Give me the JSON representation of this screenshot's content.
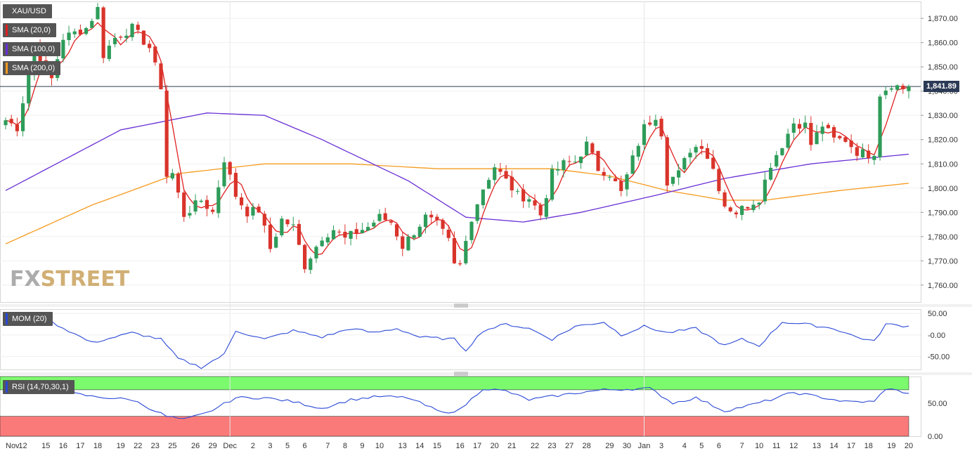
{
  "symbol": "XAU/USD",
  "indicators": [
    {
      "label": "SMA (20,0)",
      "color": "#e02020"
    },
    {
      "label": "SMA (100,0)",
      "color": "#6a2fd6"
    },
    {
      "label": "SMA (200,0)",
      "color": "#f59b1f"
    }
  ],
  "current_price_label": "1,841.89",
  "logo": {
    "part1": "FX",
    "part2": "STREET"
  },
  "panels": {
    "mom_label": "MOM (20)",
    "rsi_label": "RSI (14,70,30,1)"
  },
  "colors": {
    "up": "#2e9c5a",
    "down": "#d9342b",
    "sma20": "#e02020",
    "sma100": "#6a2fd6",
    "sma200": "#f59b1f",
    "indicator_line": "#2a49d6",
    "rsi_overbought": "#7cfa6e",
    "rsi_oversold": "#fa7a7a"
  },
  "chart_data": {
    "type": "candlestick",
    "title": "XAU/USD",
    "price_axis": {
      "ticks": [
        "1,870.00",
        "1,860.00",
        "1,850.00",
        "1,840.00",
        "1,830.00",
        "1,820.00",
        "1,810.00",
        "1,800.00",
        "1,790.00",
        "1,780.00",
        "1,770.00",
        "1,760.00"
      ],
      "range": [
        1753,
        1877
      ]
    },
    "current_price": 1841.89,
    "date_labels": [
      "Nov",
      "12",
      "15",
      "16",
      "17",
      "18",
      "19",
      "22",
      "23",
      "25",
      "26",
      "29",
      "Dec",
      "2",
      "3",
      "5",
      "6",
      "7",
      "8",
      "9",
      "10",
      "13",
      "14",
      "15",
      "16",
      "17",
      "20",
      "21",
      "22",
      "23",
      "27",
      "28",
      "29",
      "30",
      "Jan",
      "3",
      "4",
      "5",
      "6",
      "7",
      "10",
      "11",
      "12",
      "13",
      "14",
      "17",
      "18",
      "19",
      "20"
    ],
    "price_keypoints": [
      [
        0,
        1828
      ],
      [
        2,
        1825
      ],
      [
        5,
        1858
      ],
      [
        8,
        1845
      ],
      [
        10,
        1862
      ],
      [
        14,
        1866
      ],
      [
        16,
        1874
      ],
      [
        17,
        1855
      ],
      [
        19,
        1862
      ],
      [
        22,
        1866
      ],
      [
        25,
        1858
      ],
      [
        27,
        1842
      ],
      [
        28,
        1805
      ],
      [
        29,
        1806
      ],
      [
        31,
        1789
      ],
      [
        34,
        1795
      ],
      [
        36,
        1790
      ],
      [
        38,
        1812
      ],
      [
        40,
        1797
      ],
      [
        42,
        1790
      ],
      [
        44,
        1791
      ],
      [
        46,
        1775
      ],
      [
        48,
        1787
      ],
      [
        50,
        1784
      ],
      [
        52,
        1768
      ],
      [
        55,
        1780
      ],
      [
        57,
        1783
      ],
      [
        59,
        1779
      ],
      [
        61,
        1782
      ],
      [
        63,
        1784
      ],
      [
        65,
        1788
      ],
      [
        67,
        1786
      ],
      [
        69,
        1776
      ],
      [
        71,
        1782
      ],
      [
        73,
        1788
      ],
      [
        75,
        1785
      ],
      [
        77,
        1778
      ],
      [
        78,
        1768
      ],
      [
        79,
        1768
      ],
      [
        81,
        1788
      ],
      [
        83,
        1800
      ],
      [
        85,
        1809
      ],
      [
        87,
        1803
      ],
      [
        89,
        1797
      ],
      [
        91,
        1796
      ],
      [
        93,
        1789
      ],
      [
        95,
        1806
      ],
      [
        97,
        1810
      ],
      [
        99,
        1811
      ],
      [
        101,
        1818
      ],
      [
        103,
        1808
      ],
      [
        105,
        1806
      ],
      [
        107,
        1798
      ],
      [
        109,
        1812
      ],
      [
        111,
        1825
      ],
      [
        113,
        1830
      ],
      [
        114,
        1823
      ],
      [
        115,
        1803
      ],
      [
        117,
        1806
      ],
      [
        119,
        1816
      ],
      [
        121,
        1818
      ],
      [
        123,
        1808
      ],
      [
        125,
        1793
      ],
      [
        127,
        1790
      ],
      [
        129,
        1793
      ],
      [
        131,
        1796
      ],
      [
        133,
        1810
      ],
      [
        135,
        1818
      ],
      [
        137,
        1827
      ],
      [
        139,
        1826
      ],
      [
        140,
        1818
      ],
      [
        142,
        1826
      ],
      [
        144,
        1820
      ],
      [
        146,
        1820
      ],
      [
        148,
        1815
      ],
      [
        150,
        1814
      ],
      [
        151,
        1815
      ],
      [
        152,
        1839
      ],
      [
        154,
        1843
      ],
      [
        156,
        1841
      ],
      [
        157,
        1842
      ]
    ],
    "mom_axis": {
      "ticks": [
        "50.00",
        "-0.00",
        "-50.00"
      ],
      "range": [
        -80,
        60
      ]
    },
    "mom_keypoints": [
      [
        0,
        40
      ],
      [
        8,
        30
      ],
      [
        15,
        -18
      ],
      [
        22,
        5
      ],
      [
        27,
        -10
      ],
      [
        30,
        -55
      ],
      [
        34,
        -75
      ],
      [
        38,
        -45
      ],
      [
        40,
        10
      ],
      [
        45,
        -10
      ],
      [
        50,
        10
      ],
      [
        55,
        -5
      ],
      [
        60,
        15
      ],
      [
        64,
        5
      ],
      [
        68,
        15
      ],
      [
        72,
        -5
      ],
      [
        78,
        -10
      ],
      [
        80,
        -35
      ],
      [
        83,
        10
      ],
      [
        87,
        25
      ],
      [
        91,
        15
      ],
      [
        95,
        -10
      ],
      [
        99,
        20
      ],
      [
        104,
        30
      ],
      [
        107,
        0
      ],
      [
        111,
        20
      ],
      [
        115,
        5
      ],
      [
        120,
        15
      ],
      [
        125,
        -25
      ],
      [
        128,
        -10
      ],
      [
        131,
        -25
      ],
      [
        135,
        30
      ],
      [
        139,
        25
      ],
      [
        144,
        15
      ],
      [
        148,
        -5
      ],
      [
        151,
        -15
      ],
      [
        153,
        25
      ],
      [
        157,
        20
      ]
    ],
    "rsi_axis": {
      "ticks": [
        "50.00",
        "0.00"
      ],
      "range": [
        0,
        90
      ],
      "overbought": 70,
      "oversold": 30
    },
    "rsi_keypoints": [
      [
        0,
        70
      ],
      [
        8,
        70
      ],
      [
        15,
        60
      ],
      [
        22,
        55
      ],
      [
        28,
        30
      ],
      [
        31,
        25
      ],
      [
        35,
        35
      ],
      [
        40,
        58
      ],
      [
        45,
        58
      ],
      [
        50,
        52
      ],
      [
        55,
        42
      ],
      [
        60,
        55
      ],
      [
        65,
        60
      ],
      [
        70,
        58
      ],
      [
        76,
        35
      ],
      [
        79,
        40
      ],
      [
        83,
        72
      ],
      [
        87,
        68
      ],
      [
        91,
        55
      ],
      [
        95,
        60
      ],
      [
        99,
        65
      ],
      [
        104,
        70
      ],
      [
        112,
        72
      ],
      [
        116,
        50
      ],
      [
        120,
        58
      ],
      [
        125,
        38
      ],
      [
        130,
        48
      ],
      [
        133,
        55
      ],
      [
        137,
        66
      ],
      [
        141,
        60
      ],
      [
        146,
        52
      ],
      [
        151,
        52
      ],
      [
        153,
        72
      ],
      [
        157,
        65
      ]
    ]
  }
}
